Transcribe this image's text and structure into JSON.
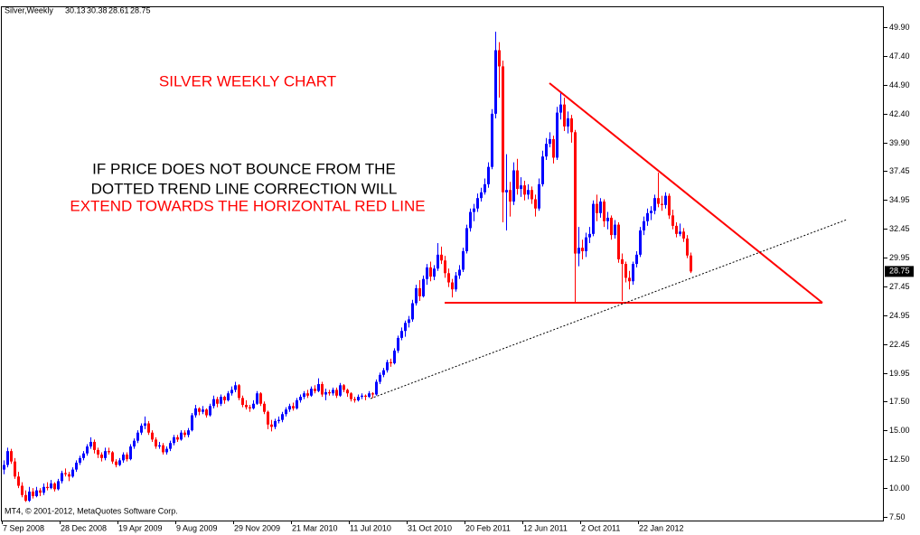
{
  "chart_data": {
    "type": "candlestick",
    "symbol": "Silver,Weekly",
    "copyright": "MT4, © 2001-2012, MetaQuotes Software Corp.",
    "annotations": [
      "SILVER WEEKLY CHART",
      "IF PRICE DOES NOT BOUNCE FROM THE",
      "DOTTED TREND LINE CORRECTION WILL",
      "EXTEND TOWARDS THE HORIZONTAL RED LINE"
    ],
    "up_color": "#0000ff",
    "down_color": "#ff0000",
    "ylim": [
      7.19,
      51.62
    ],
    "yticks": [
      {
        "value": 49.9,
        "label": "49.90"
      },
      {
        "value": 47.4,
        "label": "47.40"
      },
      {
        "value": 44.9,
        "label": "44.90"
      },
      {
        "value": 42.4,
        "label": "42.40"
      },
      {
        "value": 39.9,
        "label": "39.90"
      },
      37.45,
      34.95,
      32.45,
      29.95,
      27.45,
      24.95,
      22.45,
      19.95,
      {
        "value": 17.5,
        "label": "17.50"
      },
      {
        "value": 15,
        "label": "15.00"
      },
      {
        "value": 12.5,
        "label": "12.50"
      },
      {
        "value": 10,
        "label": "10.00"
      },
      {
        "value": 7.5,
        "label": "7.50"
      }
    ],
    "categories": [
      "7 Sep 2008",
      null,
      null,
      null,
      null,
      null,
      null,
      null,
      null,
      null,
      null,
      null,
      null,
      null,
      null,
      null,
      "28 Dec 2008",
      null,
      null,
      null,
      null,
      null,
      null,
      null,
      null,
      null,
      null,
      null,
      null,
      null,
      null,
      null,
      "19 Apr 2009",
      null,
      null,
      null,
      null,
      null,
      null,
      null,
      null,
      null,
      null,
      null,
      null,
      null,
      null,
      null,
      "9 Aug 2009",
      null,
      null,
      null,
      null,
      null,
      null,
      null,
      null,
      null,
      null,
      null,
      null,
      null,
      null,
      null,
      "29 Nov 2009",
      null,
      null,
      null,
      null,
      null,
      null,
      null,
      null,
      null,
      null,
      null,
      null,
      null,
      null,
      null,
      "21 Mar 2010",
      null,
      null,
      null,
      null,
      null,
      null,
      null,
      null,
      null,
      null,
      null,
      null,
      null,
      null,
      null,
      "11 Jul 2010",
      null,
      null,
      null,
      null,
      null,
      null,
      null,
      null,
      null,
      null,
      null,
      null,
      null,
      null,
      null,
      "31 Oct 2010",
      null,
      null,
      null,
      null,
      null,
      null,
      null,
      null,
      null,
      null,
      null,
      null,
      null,
      null,
      null,
      "20 Feb 2011",
      null,
      null,
      null,
      null,
      null,
      null,
      null,
      null,
      null,
      null,
      null,
      null,
      null,
      null,
      null,
      "12 Jun 2011",
      null,
      null,
      null,
      null,
      null,
      null,
      null,
      null,
      null,
      null,
      null,
      null,
      null,
      null,
      null,
      "2 Oct 2011",
      null,
      null,
      null,
      null,
      null,
      null,
      null,
      null,
      null,
      null,
      null,
      null,
      null,
      null,
      null,
      "22 Jan 2012",
      null,
      null,
      null,
      null,
      null,
      null,
      null,
      null,
      null,
      null,
      null,
      null,
      null,
      null
    ],
    "ohlc": [
      [
        11.6,
        12.4,
        11.2,
        12.0
      ],
      [
        12.0,
        13.5,
        11.8,
        13.2
      ],
      [
        13.2,
        13.4,
        12.1,
        12.3
      ],
      [
        12.3,
        12.6,
        10.8,
        11.0
      ],
      [
        11.0,
        11.4,
        10.0,
        10.2
      ],
      [
        10.2,
        10.5,
        9.2,
        9.4
      ],
      [
        9.4,
        9.8,
        8.8,
        8.9
      ],
      [
        8.9,
        10.1,
        8.8,
        9.7
      ],
      [
        9.7,
        10.0,
        9.1,
        9.3
      ],
      [
        9.3,
        10.1,
        9.2,
        9.8
      ],
      [
        9.8,
        10.0,
        9.3,
        9.6
      ],
      [
        9.6,
        10.4,
        9.4,
        10.1
      ],
      [
        10.1,
        10.5,
        9.8,
        10.0
      ],
      [
        10.0,
        10.7,
        9.9,
        10.4
      ],
      [
        10.4,
        10.5,
        9.7,
        9.9
      ],
      [
        9.9,
        10.8,
        9.8,
        10.6
      ],
      [
        10.6,
        11.5,
        10.4,
        11.3
      ],
      [
        11.3,
        11.7,
        11.0,
        11.2
      ],
      [
        11.2,
        11.4,
        10.6,
        11.0
      ],
      [
        11.0,
        11.8,
        10.9,
        11.6
      ],
      [
        11.6,
        12.4,
        11.4,
        12.2
      ],
      [
        12.2,
        12.8,
        12.0,
        12.6
      ],
      [
        12.6,
        13.2,
        12.4,
        13.0
      ],
      [
        13.0,
        13.8,
        12.8,
        13.6
      ],
      [
        13.6,
        14.4,
        13.4,
        14.0
      ],
      [
        14.0,
        14.2,
        13.0,
        13.3
      ],
      [
        13.3,
        13.5,
        12.6,
        12.9
      ],
      [
        12.9,
        13.1,
        12.3,
        12.6
      ],
      [
        12.6,
        13.5,
        12.4,
        13.2
      ],
      [
        13.2,
        13.5,
        12.9,
        13.1
      ],
      [
        13.1,
        13.2,
        12.1,
        12.3
      ],
      [
        12.3,
        12.5,
        11.8,
        12.0
      ],
      [
        12.0,
        12.6,
        11.9,
        12.4
      ],
      [
        12.4,
        13.1,
        12.2,
        12.9
      ],
      [
        12.9,
        13.1,
        12.3,
        12.5
      ],
      [
        12.5,
        13.8,
        12.4,
        13.6
      ],
      [
        13.6,
        14.3,
        13.4,
        14.1
      ],
      [
        14.1,
        15.0,
        13.9,
        14.8
      ],
      [
        14.8,
        15.6,
        14.6,
        15.4
      ],
      [
        15.4,
        16.2,
        15.1,
        15.6
      ],
      [
        15.6,
        15.8,
        14.6,
        14.8
      ],
      [
        14.8,
        15.0,
        14.0,
        14.2
      ],
      [
        14.2,
        14.4,
        13.4,
        13.6
      ],
      [
        13.6,
        14.0,
        13.4,
        13.7
      ],
      [
        13.7,
        13.9,
        12.9,
        13.1
      ],
      [
        13.1,
        13.6,
        12.9,
        13.4
      ],
      [
        13.4,
        14.1,
        13.2,
        13.9
      ],
      [
        13.9,
        14.6,
        13.7,
        14.4
      ],
      [
        14.4,
        14.6,
        14.0,
        14.2
      ],
      [
        14.2,
        15.0,
        14.1,
        14.8
      ],
      [
        14.8,
        15.0,
        14.4,
        14.6
      ],
      [
        14.6,
        15.2,
        14.4,
        15.0
      ],
      [
        15.0,
        16.5,
        14.9,
        16.3
      ],
      [
        16.3,
        17.2,
        16.1,
        16.9
      ],
      [
        16.9,
        17.0,
        16.3,
        16.6
      ],
      [
        16.6,
        17.1,
        16.4,
        16.8
      ],
      [
        16.8,
        16.9,
        16.1,
        16.3
      ],
      [
        16.3,
        17.3,
        16.2,
        17.1
      ],
      [
        17.1,
        18.0,
        16.9,
        17.7
      ],
      [
        17.7,
        17.9,
        17.0,
        17.3
      ],
      [
        17.3,
        18.1,
        17.1,
        17.9
      ],
      [
        17.9,
        18.0,
        17.3,
        17.6
      ],
      [
        17.6,
        18.4,
        17.5,
        18.2
      ],
      [
        18.2,
        18.8,
        18.0,
        18.5
      ],
      [
        18.5,
        19.2,
        18.3,
        18.9
      ],
      [
        18.9,
        19.0,
        17.6,
        17.8
      ],
      [
        17.8,
        18.0,
        17.0,
        17.2
      ],
      [
        17.2,
        17.6,
        16.8,
        17.0
      ],
      [
        17.0,
        17.2,
        16.6,
        16.9
      ],
      [
        16.9,
        17.6,
        16.8,
        17.3
      ],
      [
        17.3,
        18.4,
        17.2,
        18.2
      ],
      [
        18.2,
        18.3,
        17.1,
        17.3
      ],
      [
        17.3,
        17.5,
        16.4,
        16.6
      ],
      [
        16.6,
        16.7,
        15.1,
        15.5
      ],
      [
        15.5,
        15.9,
        14.9,
        15.3
      ],
      [
        15.3,
        16.0,
        15.1,
        15.8
      ],
      [
        15.8,
        16.2,
        15.6,
        15.9
      ],
      [
        15.9,
        16.6,
        15.7,
        16.4
      ],
      [
        16.4,
        17.0,
        16.2,
        16.8
      ],
      [
        16.8,
        17.3,
        16.6,
        17.1
      ],
      [
        17.1,
        17.4,
        16.7,
        16.9
      ],
      [
        16.9,
        17.8,
        16.8,
        17.6
      ],
      [
        17.6,
        18.1,
        17.4,
        17.9
      ],
      [
        17.9,
        18.4,
        17.7,
        18.2
      ],
      [
        18.2,
        18.5,
        17.8,
        18.0
      ],
      [
        18.0,
        18.8,
        17.9,
        18.6
      ],
      [
        18.6,
        18.9,
        18.2,
        18.4
      ],
      [
        18.4,
        19.5,
        18.3,
        19.0
      ],
      [
        19.0,
        19.2,
        17.9,
        18.1
      ],
      [
        18.1,
        18.6,
        17.6,
        18.3
      ],
      [
        18.3,
        18.5,
        18.0,
        18.2
      ],
      [
        18.2,
        18.7,
        18.0,
        18.5
      ],
      [
        18.5,
        18.7,
        17.8,
        18.0
      ],
      [
        18.0,
        19.1,
        17.9,
        18.9
      ],
      [
        18.9,
        19.0,
        18.3,
        18.5
      ],
      [
        18.5,
        18.6,
        17.9,
        18.2
      ],
      [
        18.2,
        18.3,
        17.5,
        17.7
      ],
      [
        17.7,
        17.9,
        17.4,
        17.6
      ],
      [
        17.6,
        18.1,
        17.5,
        17.9
      ],
      [
        17.9,
        18.2,
        17.7,
        18.0
      ],
      [
        18.0,
        18.1,
        17.6,
        17.9
      ],
      [
        17.9,
        18.4,
        17.8,
        18.2
      ],
      [
        18.2,
        18.3,
        17.8,
        18.1
      ],
      [
        18.1,
        19.4,
        18.0,
        19.2
      ],
      [
        19.2,
        20.0,
        19.0,
        19.8
      ],
      [
        19.8,
        20.4,
        19.6,
        20.2
      ],
      [
        20.2,
        21.1,
        20.0,
        20.9
      ],
      [
        20.9,
        21.2,
        20.5,
        20.8
      ],
      [
        20.8,
        22.1,
        20.7,
        21.9
      ],
      [
        21.9,
        23.2,
        21.7,
        23.0
      ],
      [
        23.0,
        23.9,
        22.8,
        23.6
      ],
      [
        23.6,
        24.5,
        23.1,
        24.3
      ],
      [
        24.3,
        24.9,
        23.9,
        24.6
      ],
      [
        24.6,
        26.3,
        24.4,
        26.0
      ],
      [
        26.0,
        27.6,
        25.8,
        27.3
      ],
      [
        27.3,
        28.0,
        26.2,
        26.6
      ],
      [
        26.6,
        28.4,
        26.5,
        28.1
      ],
      [
        28.1,
        29.4,
        27.6,
        29.1
      ],
      [
        29.1,
        29.6,
        27.9,
        28.3
      ],
      [
        28.3,
        29.3,
        28.0,
        29.0
      ],
      [
        29.0,
        31.2,
        28.8,
        30.2
      ],
      [
        30.2,
        30.9,
        29.4,
        29.7
      ],
      [
        29.7,
        30.1,
        28.2,
        28.6
      ],
      [
        28.6,
        29.0,
        27.4,
        27.8
      ],
      [
        27.8,
        28.1,
        26.5,
        27.2
      ],
      [
        27.2,
        28.7,
        27.0,
        28.4
      ],
      [
        28.4,
        29.3,
        28.1,
        28.9
      ],
      [
        28.9,
        30.8,
        28.7,
        30.5
      ],
      [
        30.5,
        32.8,
        30.3,
        32.5
      ],
      [
        32.5,
        34.2,
        32.2,
        33.9
      ],
      [
        33.9,
        34.6,
        33.1,
        34.2
      ],
      [
        34.2,
        35.5,
        33.9,
        35.1
      ],
      [
        35.1,
        36.0,
        34.8,
        35.6
      ],
      [
        35.6,
        36.8,
        35.4,
        36.3
      ],
      [
        36.3,
        38.2,
        36.0,
        37.8
      ],
      [
        37.8,
        42.8,
        37.6,
        42.4
      ],
      [
        42.4,
        49.5,
        42.0,
        47.9
      ],
      [
        47.9,
        48.6,
        43.8,
        46.5
      ],
      [
        46.5,
        47.0,
        33.0,
        35.6
      ],
      [
        35.6,
        38.9,
        32.3,
        35.8
      ],
      [
        35.8,
        36.5,
        33.5,
        34.8
      ],
      [
        34.8,
        38.2,
        34.5,
        37.5
      ],
      [
        37.5,
        38.5,
        35.4,
        35.9
      ],
      [
        35.9,
        36.9,
        35.2,
        36.2
      ],
      [
        36.2,
        36.6,
        34.9,
        35.4
      ],
      [
        35.4,
        36.3,
        35.0,
        35.8
      ],
      [
        35.8,
        36.1,
        34.6,
        35.0
      ],
      [
        35.0,
        35.4,
        33.5,
        34.2
      ],
      [
        34.2,
        36.8,
        34.0,
        36.3
      ],
      [
        36.3,
        39.2,
        36.1,
        38.7
      ],
      [
        38.7,
        40.3,
        38.4,
        39.8
      ],
      [
        39.8,
        40.8,
        39.5,
        40.2
      ],
      [
        40.2,
        40.5,
        38.1,
        38.6
      ],
      [
        38.6,
        43.0,
        38.4,
        42.5
      ],
      [
        42.5,
        44.2,
        41.9,
        43.2
      ],
      [
        43.2,
        43.8,
        40.9,
        41.3
      ],
      [
        41.3,
        42.6,
        40.7,
        42.0
      ],
      [
        42.0,
        42.3,
        39.9,
        40.8
      ],
      [
        40.8,
        41.0,
        26.1,
        30.3
      ],
      [
        30.3,
        32.6,
        29.2,
        30.8
      ],
      [
        30.8,
        31.5,
        29.8,
        30.5
      ],
      [
        30.5,
        32.1,
        30.0,
        31.7
      ],
      [
        31.7,
        32.6,
        31.2,
        32.0
      ],
      [
        32.0,
        34.9,
        31.8,
        34.6
      ],
      [
        34.6,
        35.4,
        33.1,
        33.8
      ],
      [
        33.8,
        35.1,
        33.4,
        34.8
      ],
      [
        34.8,
        35.0,
        32.6,
        33.1
      ],
      [
        33.1,
        33.9,
        32.4,
        33.4
      ],
      [
        33.4,
        33.6,
        31.5,
        31.9
      ],
      [
        31.9,
        33.2,
        31.6,
        32.8
      ],
      [
        32.8,
        33.0,
        29.5,
        29.8
      ],
      [
        29.8,
        30.3,
        26.2,
        29.4
      ],
      [
        29.4,
        29.6,
        27.8,
        28.2
      ],
      [
        28.2,
        28.8,
        27.2,
        27.9
      ],
      [
        27.9,
        29.6,
        27.6,
        29.4
      ],
      [
        29.4,
        30.5,
        29.1,
        30.2
      ],
      [
        30.2,
        32.6,
        30.0,
        32.3
      ],
      [
        32.3,
        33.5,
        31.9,
        33.1
      ],
      [
        33.1,
        34.2,
        32.7,
        33.8
      ],
      [
        33.8,
        34.4,
        33.2,
        34.0
      ],
      [
        34.0,
        35.4,
        33.7,
        35.1
      ],
      [
        35.1,
        37.3,
        34.3,
        34.6
      ],
      [
        34.6,
        35.3,
        34.0,
        34.5
      ],
      [
        34.5,
        35.6,
        34.2,
        35.3
      ],
      [
        35.3,
        35.5,
        33.3,
        33.6
      ],
      [
        33.6,
        34.1,
        32.4,
        32.7
      ],
      [
        32.7,
        33.0,
        31.7,
        32.0
      ],
      [
        32.0,
        32.9,
        31.8,
        32.2
      ],
      [
        32.2,
        32.5,
        31.3,
        31.6
      ],
      [
        31.6,
        31.9,
        29.9,
        30.13
      ],
      [
        30.13,
        30.38,
        28.61,
        28.75
      ]
    ]
  }
}
